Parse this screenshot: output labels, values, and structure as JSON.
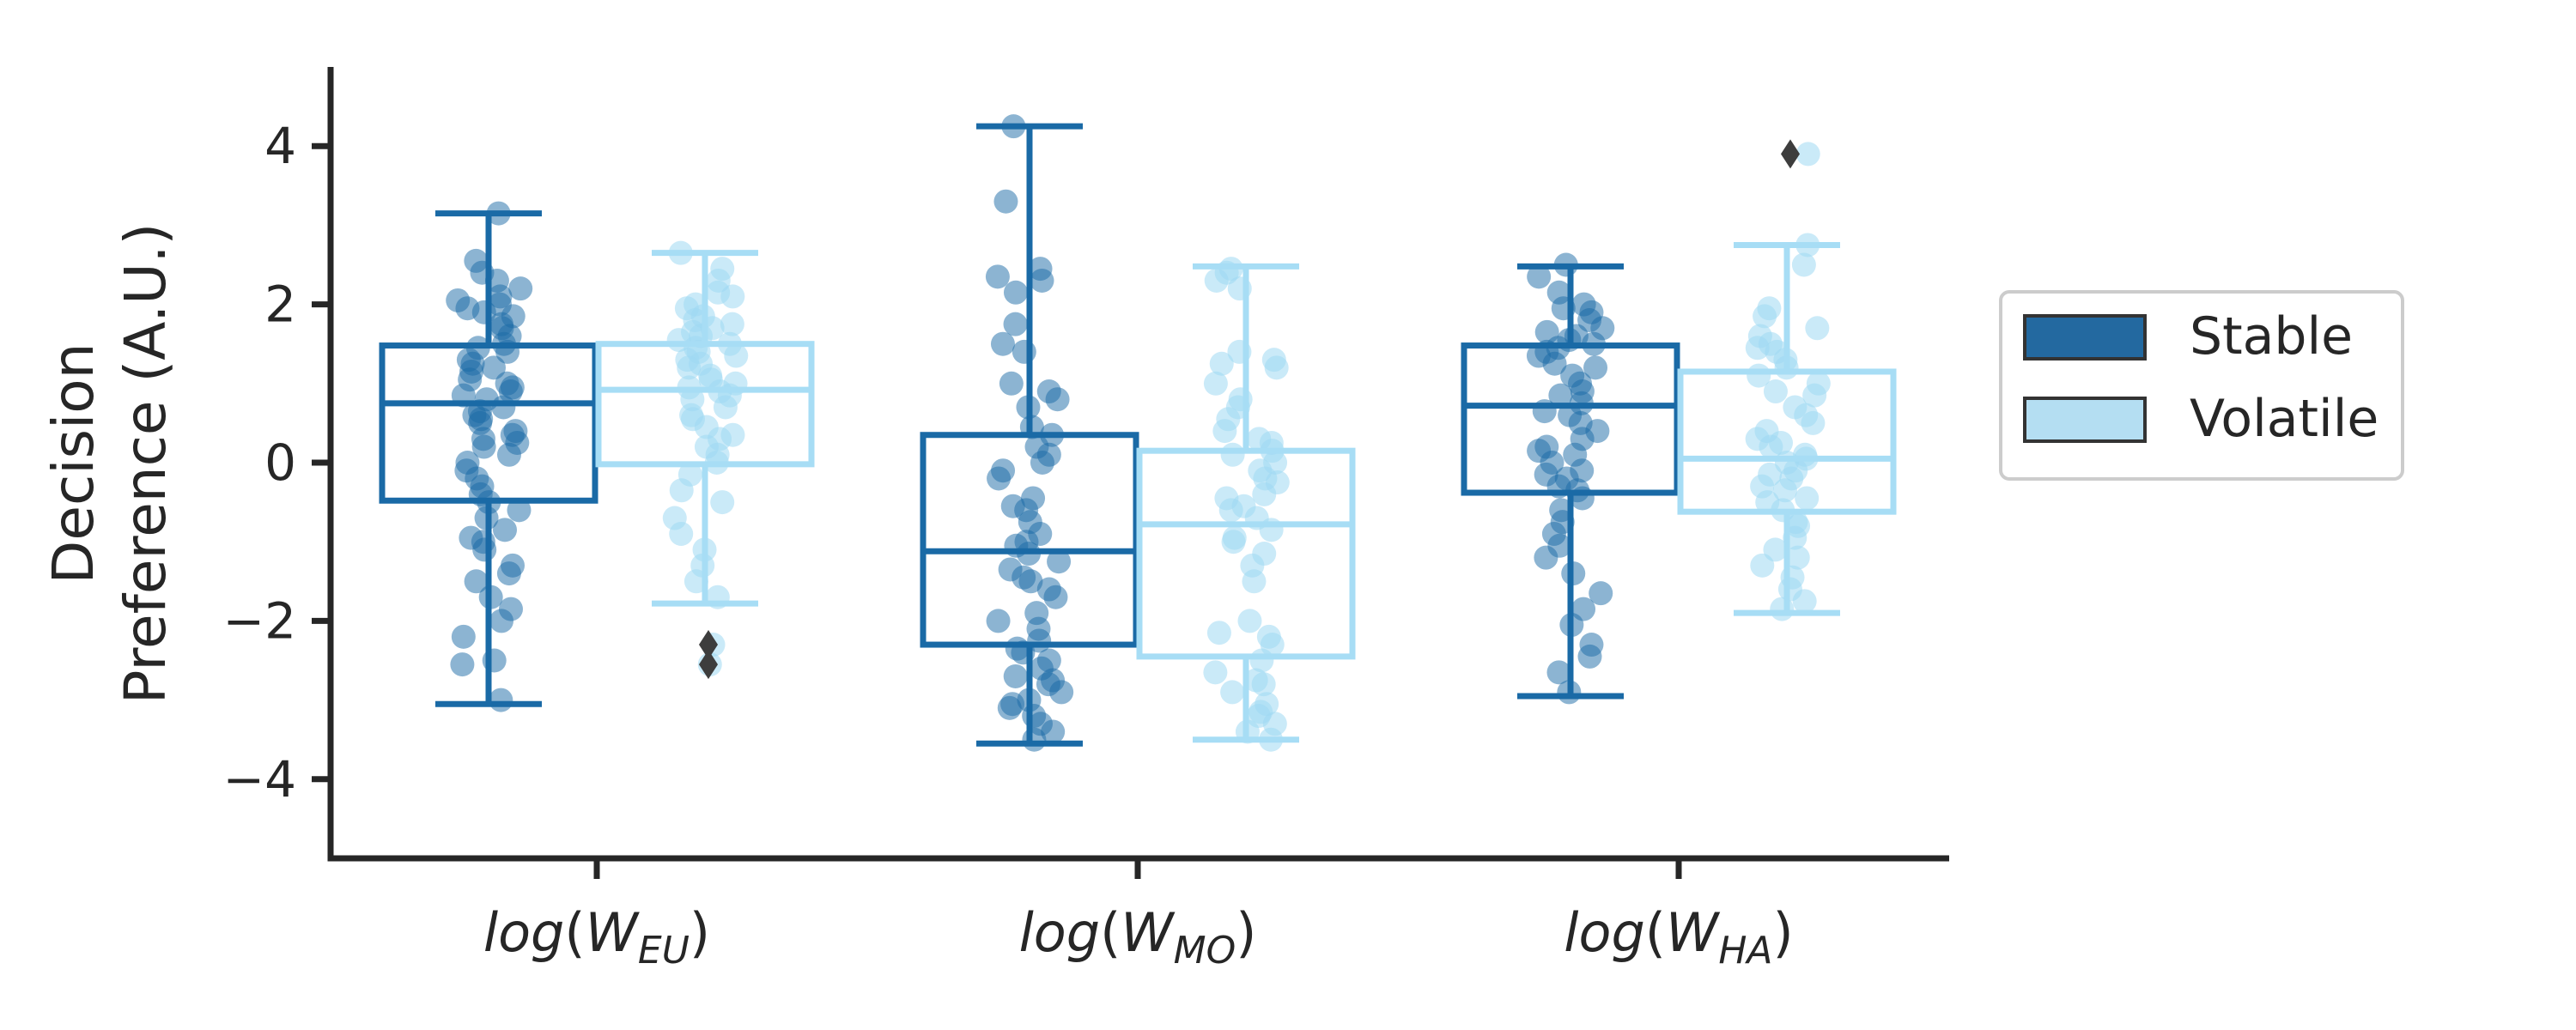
{
  "chart_data": {
    "type": "box",
    "ylabel_lines": [
      "Decision",
      "Preference (A.U.)"
    ],
    "ylim": [
      -5,
      5
    ],
    "yticks": [
      -4,
      -2,
      0,
      2,
      4
    ],
    "ytick_labels": [
      "−4",
      "−2",
      "0",
      "2",
      "4"
    ],
    "categories": [
      {
        "id": "EU",
        "label_base": "log",
        "label_var": "W",
        "label_sub": "EU"
      },
      {
        "id": "MO",
        "label_base": "log",
        "label_var": "W",
        "label_sub": "MO"
      },
      {
        "id": "HA",
        "label_base": "log",
        "label_var": "W",
        "label_sub": "HA"
      }
    ],
    "legend": {
      "placement": "right",
      "entries": [
        {
          "name": "Stable",
          "fill": "#2369a0",
          "border": "#333333"
        },
        {
          "name": "Volatile",
          "fill": "#b4def2",
          "border": "#333333"
        }
      ]
    },
    "series": [
      {
        "name": "Stable",
        "color": "#1a6aa6",
        "point_color": "#1a6aa6",
        "boxes": [
          {
            "category": "EU",
            "whisker_low": -3.05,
            "q1": -0.48,
            "median": 0.75,
            "q3": 1.48,
            "whisker_high": 3.15,
            "outliers": []
          },
          {
            "category": "MO",
            "whisker_low": -3.55,
            "q1": -2.3,
            "median": -1.12,
            "q3": 0.35,
            "whisker_high": 4.25,
            "outliers": []
          },
          {
            "category": "HA",
            "whisker_low": -2.95,
            "q1": -0.38,
            "median": 0.72,
            "q3": 1.48,
            "whisker_high": 2.48,
            "outliers": []
          }
        ],
        "points": [
          [
            3.15,
            2.55,
            2.3,
            2.2,
            2.1,
            2.0,
            1.95,
            1.85,
            1.7,
            1.6,
            1.5,
            1.45,
            1.4,
            1.3,
            1.2,
            1.15,
            1.05,
            1.0,
            0.95,
            0.9,
            0.85,
            0.8,
            0.7,
            0.65,
            0.6,
            0.5,
            0.4,
            0.35,
            0.3,
            0.2,
            0.1,
            0.0,
            -0.1,
            -0.2,
            -0.4,
            -0.5,
            -0.6,
            -0.7,
            -0.85,
            -0.95,
            -1.1,
            -1.3,
            -1.4,
            -1.5,
            -1.7,
            -1.85,
            -2.0,
            -2.2,
            -2.5,
            -2.55,
            -3.0,
            2.4,
            1.75,
            1.25,
            0.55,
            -0.3,
            -1.0,
            0.25,
            1.9,
            2.05
          ],
          [
            4.25,
            3.3,
            2.45,
            2.35,
            2.15,
            1.75,
            1.4,
            1.0,
            0.9,
            0.7,
            0.45,
            0.35,
            0.2,
            0.0,
            -0.2,
            -0.45,
            -0.6,
            -0.75,
            -0.9,
            -1.05,
            -1.15,
            -1.25,
            -1.35,
            -1.5,
            -1.7,
            -1.9,
            -2.0,
            -2.1,
            -2.25,
            -2.4,
            -2.5,
            -2.6,
            -2.7,
            -2.8,
            -2.9,
            -3.0,
            -3.1,
            -3.2,
            -3.3,
            -3.4,
            -3.5,
            2.3,
            1.5,
            0.8,
            -0.1,
            -0.55,
            -1.0,
            -1.6,
            -2.35,
            -2.75,
            -3.05,
            0.1,
            -1.45
          ],
          [
            2.5,
            2.35,
            2.15,
            2.0,
            1.9,
            1.8,
            1.7,
            1.6,
            1.5,
            1.45,
            1.35,
            1.25,
            1.1,
            1.0,
            0.9,
            0.75,
            0.6,
            0.5,
            0.4,
            0.3,
            0.2,
            0.1,
            0.0,
            -0.1,
            -0.2,
            -0.3,
            -0.45,
            -0.6,
            -0.75,
            -0.9,
            -1.05,
            -1.2,
            -1.4,
            -1.65,
            -1.85,
            -2.05,
            -2.3,
            -2.45,
            -2.65,
            -2.9,
            1.55,
            1.65,
            1.2,
            0.85,
            0.15,
            -0.35,
            1.95,
            0.65,
            1.4,
            -0.15
          ]
        ]
      },
      {
        "name": "Volatile",
        "color": "#a7ddf5",
        "point_color": "#9fd8f2",
        "boxes": [
          {
            "category": "EU",
            "whisker_low": -1.78,
            "q1": -0.02,
            "median": 0.92,
            "q3": 1.5,
            "whisker_high": 2.65,
            "outliers": [
              -2.3,
              -2.55
            ]
          },
          {
            "category": "MO",
            "whisker_low": -3.5,
            "q1": -2.45,
            "median": -0.78,
            "q3": 0.15,
            "whisker_high": 2.48,
            "outliers": []
          },
          {
            "category": "HA",
            "whisker_low": -1.9,
            "q1": -0.62,
            "median": 0.05,
            "q3": 1.15,
            "whisker_high": 2.75,
            "outliers": [
              3.9
            ]
          }
        ],
        "points": [
          [
            2.65,
            2.45,
            2.3,
            2.15,
            2.0,
            1.95,
            1.85,
            1.75,
            1.65,
            1.55,
            1.5,
            1.45,
            1.35,
            1.3,
            1.2,
            1.1,
            1.0,
            0.95,
            0.9,
            0.8,
            0.7,
            0.6,
            0.45,
            0.3,
            0.2,
            0.1,
            0.0,
            -0.15,
            -0.35,
            -0.5,
            -0.7,
            -0.9,
            -1.1,
            -1.3,
            -1.5,
            -1.7,
            -2.3,
            -2.55,
            1.8,
            1.6,
            1.25,
            1.05,
            0.55,
            0.35,
            2.1,
            1.7,
            1.4,
            0.85
          ],
          [
            2.45,
            2.3,
            2.2,
            1.4,
            1.3,
            1.2,
            1.0,
            0.8,
            0.7,
            0.4,
            0.25,
            0.1,
            0.0,
            -0.1,
            -0.25,
            -0.4,
            -0.55,
            -0.7,
            -0.85,
            -1.0,
            -1.15,
            -1.3,
            -1.5,
            -2.0,
            -2.15,
            -2.3,
            -2.5,
            -2.65,
            -2.75,
            -2.9,
            -3.05,
            -3.15,
            -3.3,
            -3.4,
            -3.5,
            2.4,
            1.25,
            0.55,
            0.15,
            -0.2,
            -0.6,
            -0.95,
            -2.2,
            -2.8,
            -3.2,
            0.3,
            -0.45
          ],
          [
            3.9,
            2.75,
            2.5,
            1.95,
            1.85,
            1.6,
            1.5,
            1.4,
            1.3,
            1.2,
            1.1,
            0.9,
            0.7,
            0.5,
            0.4,
            0.3,
            0.2,
            0.1,
            0.0,
            -0.1,
            -0.2,
            -0.3,
            -0.45,
            -0.6,
            -0.75,
            -0.95,
            -1.1,
            -1.3,
            -1.45,
            -1.6,
            -1.75,
            -1.85,
            1.45,
            1.0,
            0.6,
            0.05,
            -0.15,
            -0.5,
            -1.2,
            0.85,
            0.25,
            -0.35,
            1.7,
            -0.8
          ]
        ]
      }
    ]
  }
}
